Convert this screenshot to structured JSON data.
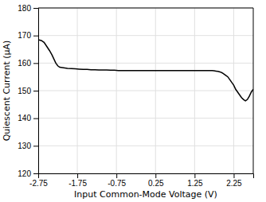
{
  "chart_data": {
    "type": "line",
    "xlabel": "Input Common-Mode Voltage (V)",
    "ylabel": "Quiescent Current (μA)",
    "x": [
      -2.75,
      -2.67,
      -2.6,
      -2.53,
      -2.46,
      -2.4,
      -2.35,
      -2.3,
      -2.25,
      -2.2,
      -2.1,
      -2.0,
      -1.9,
      -1.8,
      -1.7,
      -1.6,
      -1.5,
      -1.4,
      -1.3,
      -1.2,
      -1.1,
      -1.0,
      -0.9,
      -0.8,
      -0.7,
      -0.6,
      -0.5,
      -0.4,
      -0.3,
      -0.2,
      -0.1,
      0.0,
      0.1,
      0.2,
      0.3,
      0.4,
      0.5,
      0.6,
      0.7,
      0.8,
      0.9,
      1.0,
      1.1,
      1.2,
      1.3,
      1.4,
      1.5,
      1.6,
      1.65,
      1.7,
      1.75,
      1.8,
      1.85,
      1.9,
      1.95,
      2.0,
      2.05,
      2.1,
      2.15,
      2.2,
      2.25,
      2.3,
      2.35,
      2.4,
      2.45,
      2.5,
      2.55,
      2.6,
      2.65,
      2.7,
      2.75
    ],
    "values": [
      168.5,
      168.2,
      167.5,
      166.0,
      164.5,
      163.0,
      161.5,
      160.0,
      159.0,
      158.5,
      158.3,
      158.1,
      158.0,
      157.9,
      157.8,
      157.7,
      157.7,
      157.6,
      157.6,
      157.5,
      157.5,
      157.5,
      157.4,
      157.4,
      157.3,
      157.3,
      157.3,
      157.3,
      157.3,
      157.3,
      157.3,
      157.3,
      157.3,
      157.3,
      157.3,
      157.3,
      157.3,
      157.3,
      157.3,
      157.3,
      157.3,
      157.3,
      157.3,
      157.3,
      157.3,
      157.3,
      157.3,
      157.3,
      157.3,
      157.3,
      157.2,
      157.1,
      157.0,
      156.8,
      156.5,
      156.0,
      155.5,
      155.0,
      154.0,
      153.0,
      152.0,
      150.5,
      149.5,
      148.5,
      147.5,
      146.8,
      146.3,
      146.8,
      148.0,
      149.5,
      150.5
    ],
    "color": "#000000",
    "xlim": [
      -2.75,
      2.75
    ],
    "ylim": [
      120,
      180
    ],
    "xticks": [
      -2.75,
      -1.75,
      -0.75,
      0.25,
      1.25,
      2.25
    ],
    "yticks": [
      120,
      130,
      140,
      150,
      160,
      170,
      180
    ],
    "grid": true
  }
}
